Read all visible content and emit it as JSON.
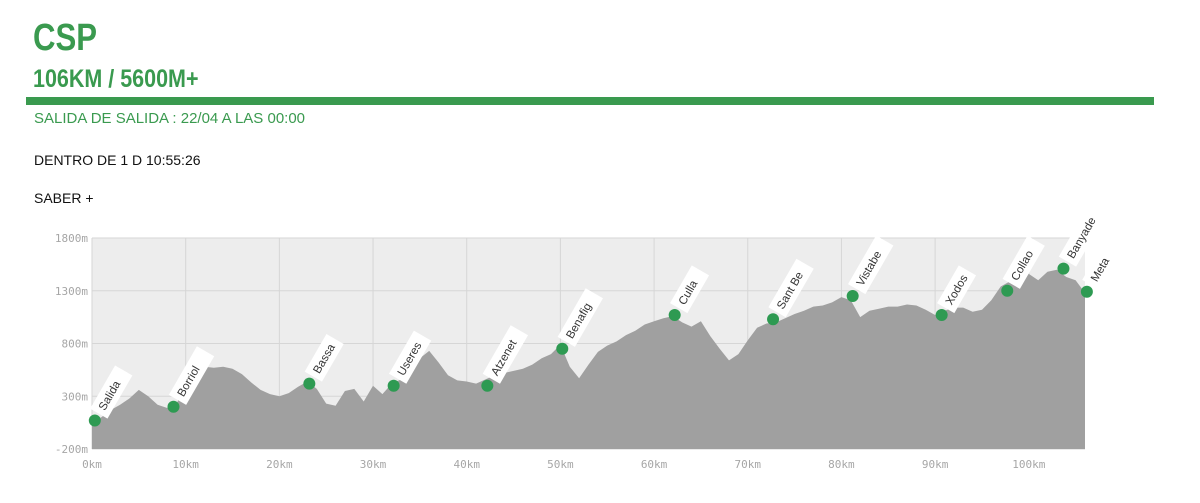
{
  "header": {
    "title": "CSP",
    "subtitle": "106KM / 5600M+",
    "start_line": "SALIDA DE SALIDA : 22/04 A LAS 00:00",
    "countdown": "DENTRO DE 1 D 10:55:26",
    "more_link": "SABER +"
  },
  "colors": {
    "accent": "#3a9a4f",
    "profile_fill": "#a0a0a0",
    "chart_bg": "#ededed",
    "grid": "#d6d6d6",
    "marker": "#2e9a52"
  },
  "chart_data": {
    "type": "area",
    "title": "",
    "xlabel": "",
    "ylabel": "",
    "xlim": [
      0,
      106
    ],
    "ylim": [
      -200,
      1800
    ],
    "x_ticks": [
      0,
      10,
      20,
      30,
      40,
      50,
      60,
      70,
      80,
      90,
      100
    ],
    "x_tick_labels": [
      "0km",
      "10km",
      "20km",
      "30km",
      "40km",
      "50km",
      "60km",
      "70km",
      "80km",
      "90km",
      "100km"
    ],
    "y_ticks": [
      -200,
      300,
      800,
      1300,
      1800
    ],
    "y_tick_labels": [
      "-200m",
      "300m",
      "800m",
      "1300m",
      "1800m"
    ],
    "grid": true,
    "series": [
      {
        "x": [
          0,
          1,
          2,
          3,
          4,
          5,
          6,
          7,
          8,
          9,
          10,
          11,
          12,
          13,
          14,
          15,
          16,
          17,
          18,
          19,
          20,
          21,
          22,
          23,
          24,
          25,
          26,
          27,
          28,
          29,
          30,
          31,
          32,
          33,
          34,
          35,
          36,
          37,
          38,
          39,
          40,
          41,
          42,
          43,
          44,
          45,
          46,
          47,
          48,
          49,
          50,
          51,
          52,
          53,
          54,
          55,
          56,
          57,
          58,
          59,
          60,
          61,
          62,
          63,
          64,
          65,
          66,
          67,
          68,
          69,
          70,
          71,
          72,
          73,
          74,
          75,
          76,
          77,
          78,
          79,
          80,
          81,
          82,
          83,
          84,
          85,
          86,
          87,
          88,
          89,
          90,
          91,
          92,
          93,
          94,
          95,
          96,
          97,
          98,
          99,
          100,
          101,
          102,
          103,
          104,
          105,
          106
        ],
        "elevation": [
          60,
          100,
          170,
          220,
          280,
          360,
          300,
          220,
          190,
          220,
          430,
          540,
          580,
          570,
          580,
          560,
          510,
          430,
          360,
          320,
          300,
          330,
          390,
          440,
          370,
          230,
          210,
          350,
          370,
          250,
          400,
          320,
          420,
          460,
          540,
          660,
          730,
          620,
          500,
          450,
          440,
          420,
          460,
          500,
          520,
          540,
          560,
          600,
          660,
          700,
          790,
          580,
          470,
          600,
          720,
          780,
          820,
          880,
          920,
          980,
          1010,
          1040,
          1060,
          1000,
          960,
          1010,
          870,
          750,
          640,
          700,
          830,
          950,
          990,
          1000,
          1040,
          1080,
          1110,
          1150,
          1160,
          1190,
          1240,
          1210,
          1050,
          1110,
          1130,
          1150,
          1150,
          1170,
          1160,
          1120,
          1070,
          1110,
          1140,
          1140,
          1100,
          1120,
          1210,
          1340,
          1390,
          1390,
          1460,
          1400,
          1480,
          1500,
          1430,
          1400,
          1280
        ]
      }
    ],
    "checkpoints": [
      {
        "name": "Salida",
        "km": 0.3,
        "elevation": 70
      },
      {
        "name": "Borriol",
        "km": 8.7,
        "elevation": 200
      },
      {
        "name": "Bassa",
        "km": 23.2,
        "elevation": 420
      },
      {
        "name": "Useres",
        "km": 32.2,
        "elevation": 400
      },
      {
        "name": "Atzenet",
        "km": 42.2,
        "elevation": 400
      },
      {
        "name": "Benafig",
        "km": 50.2,
        "elevation": 750
      },
      {
        "name": "Culla",
        "km": 62.2,
        "elevation": 1070
      },
      {
        "name": "Sant Be",
        "km": 72.7,
        "elevation": 1030
      },
      {
        "name": "Vistabe",
        "km": 81.2,
        "elevation": 1250
      },
      {
        "name": "Xodos",
        "km": 90.7,
        "elevation": 1070
      },
      {
        "name": "Collao",
        "km": 97.7,
        "elevation": 1300
      },
      {
        "name": "Banyade",
        "km": 103.7,
        "elevation": 1510
      },
      {
        "name": "Meta",
        "km": 106.2,
        "elevation": 1290
      }
    ]
  }
}
